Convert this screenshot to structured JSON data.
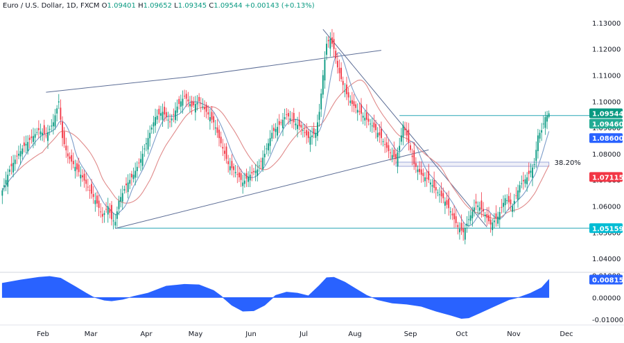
{
  "header": {
    "symbol": "Euro / U.S. Dollar, 1D, FXCM",
    "open_label": "O",
    "open": "1.09401",
    "high_label": "H",
    "high": "1.09652",
    "low_label": "L",
    "low": "1.09345",
    "close_label": "C",
    "close": "1.09544",
    "change": "+0.00143 (+0.13%)"
  },
  "colors": {
    "up": "#26a69a",
    "down": "#ef5350",
    "up_body": "#089981",
    "down_body": "#f23645",
    "trendline": "#5b6c95",
    "support": "#26a6b5",
    "ma_fast": "#7b9cc9",
    "ma_slow": "#e08a8a",
    "oscillator": "#2962ff",
    "fib_box": "#9fa8da"
  },
  "chart_data": [
    {
      "type": "candlestick",
      "title": "Euro / U.S. Dollar, 1D, FXCM",
      "x_labels": [
        "Feb",
        "Mar",
        "Apr",
        "May",
        "Jun",
        "Jul",
        "Aug",
        "Sep",
        "Oct",
        "Nov",
        "Dec"
      ],
      "y_ticks": [
        "1.13000",
        "1.12000",
        "1.11000",
        "1.10000",
        "1.09000",
        "1.08000",
        "1.07000",
        "1.06000",
        "1.05000",
        "1.04000"
      ],
      "ylim": [
        1.035,
        1.135
      ],
      "close_path": [
        [
          0,
          1.066
        ],
        [
          4,
          1.074
        ],
        [
          8,
          1.079
        ],
        [
          12,
          1.083
        ],
        [
          16,
          1.086
        ],
        [
          20,
          1.089
        ],
        [
          24,
          1.087
        ],
        [
          28,
          1.092
        ],
        [
          31,
          1.1
        ],
        [
          33,
          1.086
        ],
        [
          36,
          1.079
        ],
        [
          40,
          1.075
        ],
        [
          44,
          1.071
        ],
        [
          48,
          1.066
        ],
        [
          52,
          1.061
        ],
        [
          55,
          1.056
        ],
        [
          58,
          1.06
        ],
        [
          60,
          1.055
        ],
        [
          62,
          1.054
        ],
        [
          64,
          1.062
        ],
        [
          68,
          1.068
        ],
        [
          72,
          1.072
        ],
        [
          76,
          1.078
        ],
        [
          80,
          1.086
        ],
        [
          84,
          1.094
        ],
        [
          88,
          1.096
        ],
        [
          92,
          1.092
        ],
        [
          96,
          1.098
        ],
        [
          100,
          1.102
        ],
        [
          104,
          1.098
        ],
        [
          108,
          1.1
        ],
        [
          112,
          1.096
        ],
        [
          116,
          1.092
        ],
        [
          120,
          1.084
        ],
        [
          124,
          1.076
        ],
        [
          128,
          1.073
        ],
        [
          132,
          1.069
        ],
        [
          136,
          1.072
        ],
        [
          140,
          1.074
        ],
        [
          144,
          1.08
        ],
        [
          148,
          1.088
        ],
        [
          152,
          1.091
        ],
        [
          156,
          1.095
        ],
        [
          160,
          1.092
        ],
        [
          164,
          1.09
        ],
        [
          168,
          1.086
        ],
        [
          172,
          1.088
        ],
        [
          174,
          1.096
        ],
        [
          176,
          1.11
        ],
        [
          178,
          1.122
        ],
        [
          180,
          1.124
        ],
        [
          182,
          1.12
        ],
        [
          184,
          1.113
        ],
        [
          188,
          1.104
        ],
        [
          192,
          1.099
        ],
        [
          196,
          1.096
        ],
        [
          200,
          1.093
        ],
        [
          204,
          1.09
        ],
        [
          208,
          1.086
        ],
        [
          212,
          1.081
        ],
        [
          216,
          1.078
        ],
        [
          218,
          1.083
        ],
        [
          220,
          1.091
        ],
        [
          222,
          1.087
        ],
        [
          226,
          1.076
        ],
        [
          230,
          1.072
        ],
        [
          234,
          1.07
        ],
        [
          238,
          1.066
        ],
        [
          242,
          1.063
        ],
        [
          246,
          1.058
        ],
        [
          250,
          1.052
        ],
        [
          253,
          1.05
        ],
        [
          256,
          1.055
        ],
        [
          260,
          1.061
        ],
        [
          264,
          1.058
        ],
        [
          268,
          1.053
        ],
        [
          272,
          1.056
        ],
        [
          276,
          1.063
        ],
        [
          280,
          1.06
        ],
        [
          284,
          1.068
        ],
        [
          288,
          1.071
        ],
        [
          292,
          1.076
        ],
        [
          294,
          1.087
        ],
        [
          296,
          1.089
        ],
        [
          298,
          1.094
        ],
        [
          300,
          1.0954
        ]
      ],
      "n_bars": 301,
      "ma_fast_lag": 4,
      "ma_slow_lag": 11,
      "horizontal_lines": [
        {
          "value": 1.0946,
          "label": "1.09460",
          "start": 218
        },
        {
          "value": 1.05159,
          "label": "1.05159",
          "start": 62
        }
      ],
      "fib_label": "38.20%",
      "fib_box": {
        "start": 216,
        "end": 300,
        "top": 1.0768,
        "bottom": 1.0752
      },
      "trendlines": [
        {
          "from": [
            24,
            1.1035
          ],
          "to": [
            104,
            1.1095
          ]
        },
        {
          "from": [
            104,
            1.1095
          ],
          "to": [
            208,
            1.1195
          ]
        },
        {
          "from": [
            62,
            1.0515
          ],
          "to": [
            234,
            1.0815
          ]
        },
        {
          "from": [
            176,
            1.1275
          ],
          "to": [
            266,
            1.052
          ]
        }
      ],
      "price_badges": [
        {
          "value": 1.09544,
          "label": "1.09544",
          "color": "#089981"
        },
        {
          "value": 1.0946,
          "label": "1.09460",
          "color": "#22ab94"
        },
        {
          "value": 1.086,
          "label": "1.08600",
          "color": "#2962ff"
        },
        {
          "value": 1.07115,
          "label": "1.07115",
          "color": "#f23645"
        },
        {
          "value": 1.05159,
          "label": "1.05159",
          "color": "#00bcd4"
        }
      ]
    },
    {
      "type": "area",
      "y_ticks": [
        "0.01000",
        "0.00000",
        "-0.01000"
      ],
      "ylim": [
        -0.0115,
        0.0105
      ],
      "last_label": "0.00815",
      "points": [
        [
          0,
          0.0065
        ],
        [
          10,
          0.008
        ],
        [
          20,
          0.0092
        ],
        [
          26,
          0.0096
        ],
        [
          32,
          0.0088
        ],
        [
          40,
          0.005
        ],
        [
          46,
          0.002
        ],
        [
          50,
          0.0002
        ],
        [
          56,
          -0.0012
        ],
        [
          60,
          -0.0015
        ],
        [
          66,
          -0.0008
        ],
        [
          72,
          0.0005
        ],
        [
          80,
          0.002
        ],
        [
          90,
          0.0052
        ],
        [
          100,
          0.006
        ],
        [
          108,
          0.0058
        ],
        [
          116,
          0.0032
        ],
        [
          120,
          0.0008
        ],
        [
          126,
          -0.0035
        ],
        [
          132,
          -0.0062
        ],
        [
          138,
          -0.006
        ],
        [
          144,
          -0.0035
        ],
        [
          150,
          0.001
        ],
        [
          156,
          0.0025
        ],
        [
          162,
          0.002
        ],
        [
          168,
          0.0008
        ],
        [
          174,
          0.0055
        ],
        [
          178,
          0.009
        ],
        [
          182,
          0.0092
        ],
        [
          188,
          0.007
        ],
        [
          194,
          0.004
        ],
        [
          200,
          0.001
        ],
        [
          206,
          -0.001
        ],
        [
          214,
          -0.0025
        ],
        [
          222,
          -0.003
        ],
        [
          230,
          -0.004
        ],
        [
          238,
          -0.0062
        ],
        [
          246,
          -0.008
        ],
        [
          252,
          -0.0095
        ],
        [
          256,
          -0.0092
        ],
        [
          262,
          -0.007
        ],
        [
          270,
          -0.004
        ],
        [
          278,
          -0.001
        ],
        [
          284,
          0.0002
        ],
        [
          290,
          0.002
        ],
        [
          296,
          0.0045
        ],
        [
          300,
          0.00815
        ]
      ]
    }
  ]
}
